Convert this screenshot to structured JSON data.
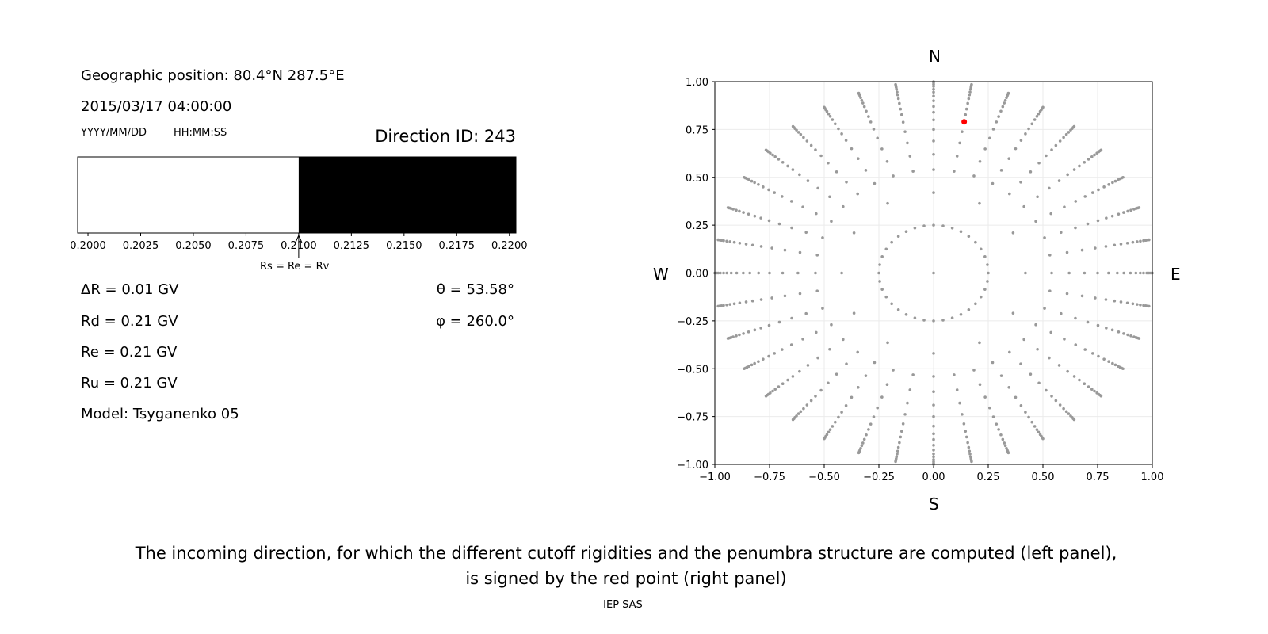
{
  "left_panel": {
    "geo_position": "Geographic position: 80.4°N 287.5°E",
    "datetime": "2015/03/17 04:00:00",
    "date_format": "YYYY/MM/DD",
    "time_format": "HH:MM:SS",
    "direction_id": "Direction ID: 243",
    "arrow_label": "Rs = Re = Rv",
    "delta_r": "ΔR = 0.01 GV",
    "rd": "Rd = 0.21 GV",
    "re": "Re = 0.21 GV",
    "ru": "Ru = 0.21 GV",
    "model": "Model: Tsyganenko 05",
    "theta": "θ = 53.58°",
    "phi": "φ = 260.0°"
  },
  "caption": {
    "line1": "The incoming direction, for which the different cutoff rigidities and the penumbra structure are computed (left panel),",
    "line2": "is signed by the red point (right panel)",
    "credit": "IEP SAS"
  },
  "chart_data": [
    {
      "type": "bar",
      "title": "",
      "xlim": [
        0.19951,
        0.22031
      ],
      "xticks": [
        "0.2000",
        "0.2025",
        "0.2050",
        "0.2075",
        "0.2100",
        "0.2125",
        "0.2150",
        "0.2175",
        "0.2200"
      ],
      "segments": [
        {
          "from": 0.19951,
          "to": 0.21,
          "color": "#ffffff",
          "meaning": "allowed"
        },
        {
          "from": 0.21,
          "to": 0.22031,
          "color": "#000000",
          "meaning": "forbidden"
        }
      ],
      "arrow_at": 0.21
    },
    {
      "type": "scatter",
      "xlim": [
        -1,
        1
      ],
      "ylim": [
        -1,
        1
      ],
      "xticks": [
        "−1.00",
        "−0.75",
        "−0.50",
        "−0.25",
        "0.00",
        "0.25",
        "0.50",
        "0.75",
        "1.00"
      ],
      "yticks": [
        "−1.00",
        "−0.75",
        "−0.50",
        "−0.25",
        "0.00",
        "0.25",
        "0.50",
        "0.75",
        "1.00"
      ],
      "grid": true,
      "compass": {
        "n": "N",
        "s": "S",
        "e": "E",
        "w": "W"
      },
      "directions_grid": {
        "ray_step_deg": 10,
        "ring_radius": 0.25,
        "ray_radii": [
          0.42,
          0.54,
          0.62,
          0.69,
          0.75,
          0.8,
          0.84,
          0.87,
          0.9,
          0.925,
          0.945,
          0.96,
          0.975,
          0.985,
          0.993,
          1.0
        ],
        "color": "#999999"
      },
      "selected_point": {
        "x": 0.14,
        "y": 0.79,
        "color": "#ff0000"
      }
    }
  ]
}
